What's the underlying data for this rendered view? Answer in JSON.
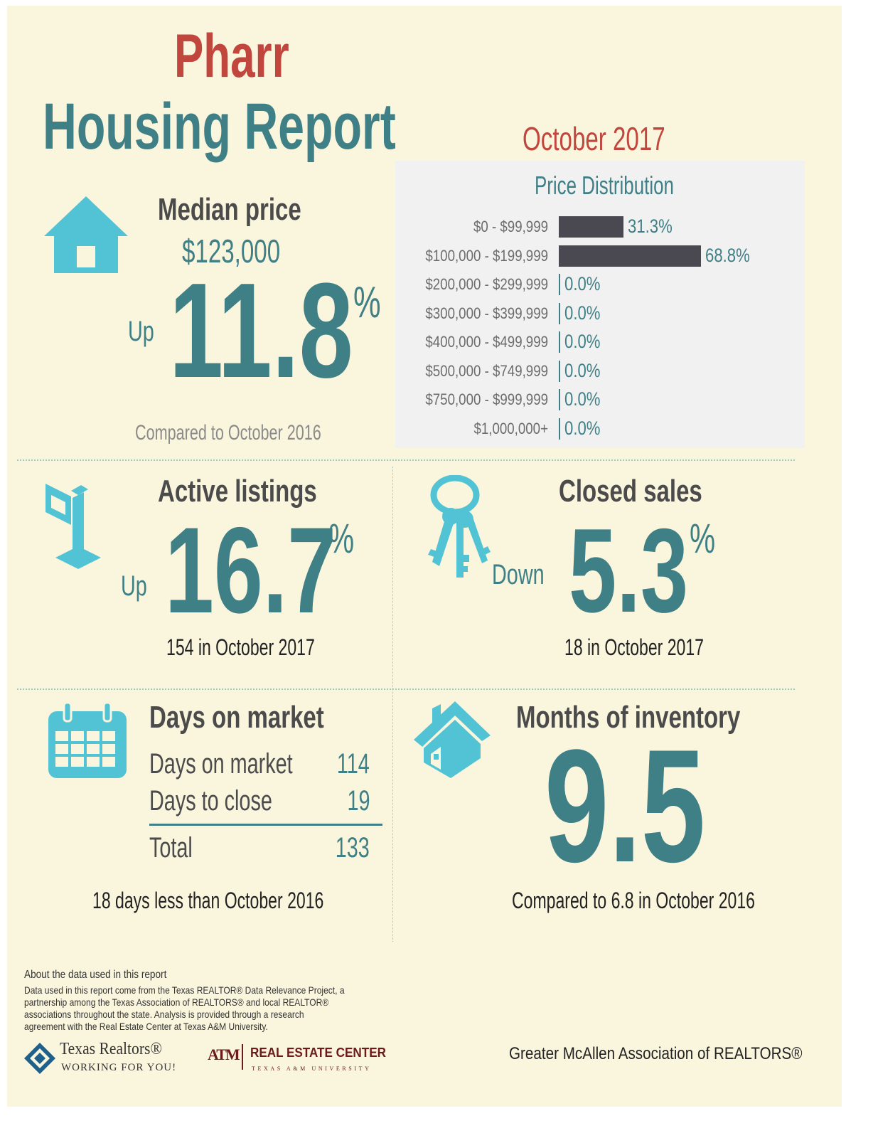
{
  "title": {
    "city": "Pharr",
    "report": "Housing Report",
    "date": "October 2017"
  },
  "median": {
    "heading": "Median price",
    "price": "$123,000",
    "direction": "Up",
    "percent": "11.8",
    "percent_sign": "%",
    "compared": "Compared to October 2016"
  },
  "price_distribution": {
    "heading": "Price Distribution",
    "rows": [
      {
        "label": "$0 - $99,999",
        "value": "31.3%"
      },
      {
        "label": "$100,000 - $199,999",
        "value": "68.8%"
      },
      {
        "label": "$200,000 - $299,999",
        "value": "0.0%"
      },
      {
        "label": "$300,000 - $399,999",
        "value": "0.0%"
      },
      {
        "label": "$400,000 - $499,999",
        "value": "0.0%"
      },
      {
        "label": "$500,000 - $749,999",
        "value": "0.0%"
      },
      {
        "label": "$750,000 - $999,999",
        "value": "0.0%"
      },
      {
        "label": "$1,000,000+",
        "value": "0.0%"
      }
    ]
  },
  "chart_data": {
    "type": "bar",
    "title": "Price Distribution",
    "categories": [
      "$0 - $99,999",
      "$100,000 - $199,999",
      "$200,000 - $299,999",
      "$300,000 - $399,999",
      "$400,000 - $499,999",
      "$500,000 - $749,999",
      "$750,000 - $999,999",
      "$1,000,000+"
    ],
    "values": [
      31.3,
      68.8,
      0.0,
      0.0,
      0.0,
      0.0,
      0.0,
      0.0
    ],
    "orientation": "horizontal",
    "bar_color": "#4a4850",
    "label_color": "#3f7f86"
  },
  "active_listings": {
    "heading": "Active listings",
    "direction": "Up",
    "percent": "16.7",
    "percent_sign": "%",
    "detail": "154 in October 2017"
  },
  "closed_sales": {
    "heading": "Closed sales",
    "direction": "Down",
    "percent": "5.3",
    "percent_sign": "%",
    "detail": "18 in October 2017"
  },
  "days_on_market": {
    "heading": "Days on market",
    "rows": [
      {
        "label": "Days on market",
        "value": "114"
      },
      {
        "label": "Days to close",
        "value": "19"
      }
    ],
    "total_label": "Total",
    "total_value": "133",
    "detail": "18 days less than October 2016"
  },
  "months_inventory": {
    "heading": "Months of inventory",
    "value": "9.5",
    "detail": "Compared to 6.8 in October 2016"
  },
  "footer": {
    "about_heading": "About the data used in this report",
    "about_lines": [
      "Data used in this report come from the Texas REALTOR® Data Relevance Project, a",
      "partnership among the Texas Association of REALTORS® and local REALTOR®",
      "associations throughout the state. Analysis is provided through a research",
      "agreement with the Real Estate Center at Texas A&M University."
    ],
    "logo_texas_realtors": "Texas Realtors®",
    "logo_texas_tagline": "WORKING FOR YOU!",
    "logo_rec": "REAL ESTATE CENTER",
    "logo_rec_sub": "TEXAS A&M UNIVERSITY",
    "logo_atm": "ATM",
    "association": "Greater McAllen Association of REALTORS®"
  },
  "colors": {
    "background": "#faf5dd",
    "teal": "#3f7f86",
    "red": "#c1463d",
    "icon": "#52c3d4",
    "bar": "#4a4850",
    "panel": "#f1f1f1"
  },
  "icons": [
    "house-icon",
    "for-sale-sign-icon",
    "keys-icon",
    "calendar-icon",
    "house-small-icon",
    "texas-realtors-logo-icon",
    "texas-am-logo-icon"
  ]
}
